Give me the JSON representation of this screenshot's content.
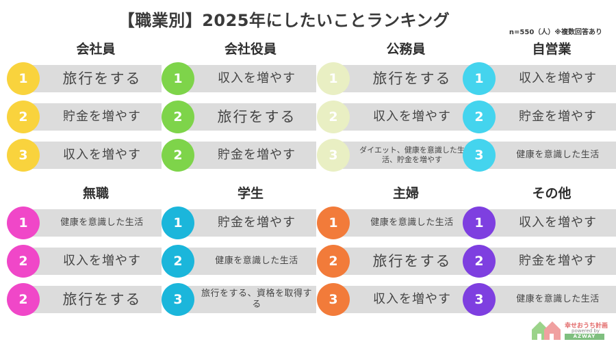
{
  "title": "【職業別】2025年にしたいことランキング",
  "note": "n=550（人）※複数回答あり",
  "groups": [
    {
      "label": "会社員",
      "items": [
        {
          "rank": "1",
          "text": "旅行をする",
          "color": "#f9d33d"
        },
        {
          "rank": "2",
          "text": "貯金を増やす",
          "color": "#f9d33d"
        },
        {
          "rank": "3",
          "text": "収入を増やす",
          "color": "#f9d33d"
        }
      ]
    },
    {
      "label": "会社役員",
      "items": [
        {
          "rank": "1",
          "text": "収入を増やす",
          "color": "#7ed44a"
        },
        {
          "rank": "2",
          "text": "旅行をする",
          "color": "#7ed44a"
        },
        {
          "rank": "2",
          "text": "貯金を増やす",
          "color": "#7ed44a"
        }
      ]
    },
    {
      "label": "公務員",
      "items": [
        {
          "rank": "1",
          "text": "旅行をする",
          "color": "#e9efc3"
        },
        {
          "rank": "2",
          "text": "収入を増やす",
          "color": "#e9efc3"
        },
        {
          "rank": "3",
          "text": "ダイエット、健康を意識した生活、貯金を増やす",
          "color": "#e9efc3"
        }
      ]
    },
    {
      "label": "自営業",
      "items": [
        {
          "rank": "1",
          "text": "収入を増やす",
          "color": "#44d4ee"
        },
        {
          "rank": "2",
          "text": "貯金を増やす",
          "color": "#44d4ee"
        },
        {
          "rank": "3",
          "text": "健康を意識した生活",
          "color": "#44d4ee"
        }
      ]
    },
    {
      "label": "無職",
      "items": [
        {
          "rank": "1",
          "text": "健康を意識した生活",
          "color": "#f047c8"
        },
        {
          "rank": "2",
          "text": "収入を増やす",
          "color": "#f047c8"
        },
        {
          "rank": "2",
          "text": "旅行をする",
          "color": "#f047c8"
        }
      ]
    },
    {
      "label": "学生",
      "items": [
        {
          "rank": "1",
          "text": "貯金を増やす",
          "color": "#1bb6db"
        },
        {
          "rank": "2",
          "text": "健康を意識した生活",
          "color": "#1bb6db"
        },
        {
          "rank": "3",
          "text": "旅行をする、資格を取得する",
          "color": "#1bb6db"
        }
      ]
    },
    {
      "label": "主婦",
      "items": [
        {
          "rank": "1",
          "text": "健康を意識した生活",
          "color": "#f27b3a"
        },
        {
          "rank": "2",
          "text": "旅行をする",
          "color": "#f27b3a"
        },
        {
          "rank": "3",
          "text": "収入を増やす",
          "color": "#f27b3a"
        }
      ]
    },
    {
      "label": "その他",
      "items": [
        {
          "rank": "1",
          "text": "収入を増やす",
          "color": "#7e3fe0"
        },
        {
          "rank": "2",
          "text": "貯金を増やす",
          "color": "#7e3fe0"
        },
        {
          "rank": "3",
          "text": "健康を意識した生活",
          "color": "#7e3fe0"
        }
      ]
    }
  ],
  "logo": {
    "name": "幸せおうち計画",
    "powered": "powered by",
    "brand": "AZWAY"
  }
}
